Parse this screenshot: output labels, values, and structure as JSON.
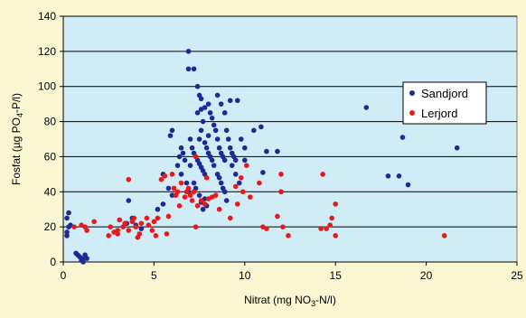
{
  "chart_data": {
    "type": "scatter",
    "title": "",
    "xlabel": {
      "pre": "Nitrat (mg NO",
      "sub": "3",
      "post": "-N/l)"
    },
    "ylabel": {
      "pre": "Fosfat  (µg PO",
      "sub": "4",
      "post": "-P/l)"
    },
    "xlim": [
      0,
      25
    ],
    "ylim": [
      0,
      140
    ],
    "xticks": [
      0,
      5,
      10,
      15,
      20,
      25
    ],
    "yticks": [
      0,
      20,
      40,
      60,
      80,
      100,
      120,
      140
    ],
    "grid": {
      "horizontal": true,
      "vertical": false
    },
    "legend_position": "right",
    "plot_background": "#d0ecf7",
    "page_background": "#fbf6d2",
    "series": [
      {
        "name": "Sandjord",
        "color": "#1f2a90",
        "points": [
          [
            0.2,
            15
          ],
          [
            0.2,
            17
          ],
          [
            0.3,
            20
          ],
          [
            0.2,
            25
          ],
          [
            0.3,
            28
          ],
          [
            0.4,
            21
          ],
          [
            0.7,
            5
          ],
          [
            0.8,
            4
          ],
          [
            0.9,
            3
          ],
          [
            1.0,
            2
          ],
          [
            1.1,
            2
          ],
          [
            1.2,
            3
          ],
          [
            1.0,
            1
          ],
          [
            1.1,
            0
          ],
          [
            1.3,
            2
          ],
          [
            1.2,
            4
          ],
          [
            3.5,
            22
          ],
          [
            3.6,
            35
          ],
          [
            3.8,
            25
          ],
          [
            4.0,
            21
          ],
          [
            4.3,
            19
          ],
          [
            5.2,
            30
          ],
          [
            5.5,
            33
          ],
          [
            5.8,
            42
          ],
          [
            5.5,
            50
          ],
          [
            5.9,
            72
          ],
          [
            6.0,
            75
          ],
          [
            6.0,
            38
          ],
          [
            6.3,
            55
          ],
          [
            6.4,
            60
          ],
          [
            6.5,
            65
          ],
          [
            6.6,
            62
          ],
          [
            6.7,
            58
          ],
          [
            6.8,
            45
          ],
          [
            6.9,
            40
          ],
          [
            6.5,
            50
          ],
          [
            6.9,
            120
          ],
          [
            6.9,
            110
          ],
          [
            7.2,
            110
          ],
          [
            7.5,
            95
          ],
          [
            7.4,
            100
          ],
          [
            7.6,
            87
          ],
          [
            7.4,
            85
          ],
          [
            7.0,
            70
          ],
          [
            7.1,
            65
          ],
          [
            7.2,
            62
          ],
          [
            7.3,
            60
          ],
          [
            7.4,
            58
          ],
          [
            7.5,
            56
          ],
          [
            7.6,
            54
          ],
          [
            7.7,
            52
          ],
          [
            7.8,
            50
          ],
          [
            7.0,
            55
          ],
          [
            7.2,
            45
          ],
          [
            7.3,
            42
          ],
          [
            7.5,
            38
          ],
          [
            7.6,
            34
          ],
          [
            7.8,
            36
          ],
          [
            7.9,
            32
          ],
          [
            7.7,
            30
          ],
          [
            7.5,
            70
          ],
          [
            7.6,
            75
          ],
          [
            7.7,
            80
          ],
          [
            7.8,
            68
          ],
          [
            7.9,
            65
          ],
          [
            8.0,
            62
          ],
          [
            8.1,
            60
          ],
          [
            8.2,
            58
          ],
          [
            8.3,
            55
          ],
          [
            7.6,
            93
          ],
          [
            7.8,
            88
          ],
          [
            8.0,
            90
          ],
          [
            8.1,
            85
          ],
          [
            8.2,
            82
          ],
          [
            8.3,
            78
          ],
          [
            8.0,
            72
          ],
          [
            8.4,
            75
          ],
          [
            8.5,
            70
          ],
          [
            8.6,
            65
          ],
          [
            8.7,
            62
          ],
          [
            8.8,
            60
          ],
          [
            8.9,
            58
          ],
          [
            8.5,
            50
          ],
          [
            8.6,
            48
          ],
          [
            8.7,
            45
          ],
          [
            8.8,
            42
          ],
          [
            8.9,
            40
          ],
          [
            9.0,
            35
          ],
          [
            8.5,
            95
          ],
          [
            8.7,
            90
          ],
          [
            8.9,
            85
          ],
          [
            9.0,
            75
          ],
          [
            9.1,
            70
          ],
          [
            9.2,
            65
          ],
          [
            9.3,
            62
          ],
          [
            9.4,
            60
          ],
          [
            9.5,
            58
          ],
          [
            9.3,
            55
          ],
          [
            9.5,
            50
          ],
          [
            9.2,
            92
          ],
          [
            9.6,
            92
          ],
          [
            9.8,
            70
          ],
          [
            10.0,
            65
          ],
          [
            10.0,
            58
          ],
          [
            9.7,
            45
          ],
          [
            10.5,
            75
          ],
          [
            10.9,
            77
          ],
          [
            11.0,
            51
          ],
          [
            11.2,
            63
          ],
          [
            11.8,
            63
          ],
          [
            16.7,
            88
          ],
          [
            17.9,
            49
          ],
          [
            18.5,
            49
          ],
          [
            18.7,
            71
          ],
          [
            19.0,
            44
          ],
          [
            21.7,
            65
          ]
        ]
      },
      {
        "name": "Lerjord",
        "color": "#e41a1c",
        "points": [
          [
            0.6,
            20
          ],
          [
            1.0,
            21
          ],
          [
            1.2,
            20
          ],
          [
            1.3,
            18
          ],
          [
            1.7,
            23
          ],
          [
            2.5,
            15
          ],
          [
            2.6,
            20
          ],
          [
            2.8,
            17
          ],
          [
            3.0,
            18
          ],
          [
            3.0,
            16
          ],
          [
            3.1,
            24
          ],
          [
            3.3,
            20
          ],
          [
            3.4,
            22
          ],
          [
            3.6,
            47
          ],
          [
            3.6,
            18
          ],
          [
            3.8,
            23
          ],
          [
            3.9,
            25
          ],
          [
            4.0,
            20
          ],
          [
            4.1,
            14
          ],
          [
            4.2,
            16
          ],
          [
            4.3,
            22
          ],
          [
            4.6,
            25
          ],
          [
            4.7,
            21
          ],
          [
            4.9,
            18
          ],
          [
            5.0,
            23
          ],
          [
            5.1,
            15
          ],
          [
            5.2,
            25
          ],
          [
            5.4,
            47
          ],
          [
            5.6,
            49
          ],
          [
            5.7,
            16
          ],
          [
            5.8,
            26
          ],
          [
            6.0,
            50
          ],
          [
            6.1,
            42
          ],
          [
            6.2,
            38
          ],
          [
            6.3,
            40
          ],
          [
            6.4,
            32
          ],
          [
            6.5,
            45
          ],
          [
            6.7,
            37
          ],
          [
            6.8,
            40
          ],
          [
            6.9,
            42
          ],
          [
            7.0,
            38
          ],
          [
            7.1,
            35
          ],
          [
            7.2,
            40
          ],
          [
            7.3,
            20
          ],
          [
            7.3,
            60
          ],
          [
            7.4,
            32
          ],
          [
            7.6,
            35
          ],
          [
            7.8,
            33
          ],
          [
            7.9,
            48
          ],
          [
            8.0,
            36
          ],
          [
            8.2,
            37
          ],
          [
            8.4,
            38
          ],
          [
            8.6,
            30
          ],
          [
            9.2,
            25
          ],
          [
            9.5,
            43
          ],
          [
            9.6,
            33
          ],
          [
            9.8,
            48
          ],
          [
            9.9,
            40
          ],
          [
            10.1,
            55
          ],
          [
            10.3,
            37
          ],
          [
            10.8,
            45
          ],
          [
            11.0,
            20
          ],
          [
            11.2,
            19
          ],
          [
            12.0,
            40
          ],
          [
            11.8,
            26
          ],
          [
            12.0,
            40
          ],
          [
            12.0,
            50
          ],
          [
            12.1,
            20
          ],
          [
            12.4,
            15
          ],
          [
            14.2,
            19
          ],
          [
            14.3,
            50
          ],
          [
            14.5,
            19
          ],
          [
            14.7,
            21
          ],
          [
            14.8,
            25
          ],
          [
            15.0,
            15
          ],
          [
            15.0,
            33
          ],
          [
            21.0,
            15
          ]
        ]
      }
    ]
  }
}
